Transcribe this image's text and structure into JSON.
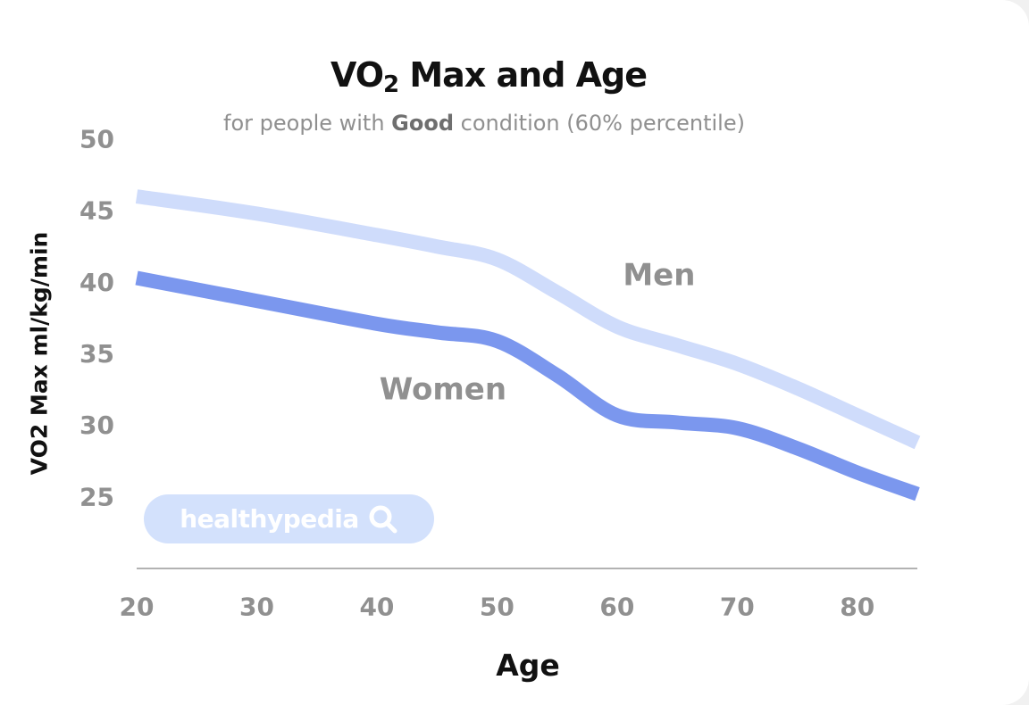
{
  "title": {
    "main": "VO",
    "subscript": "2",
    "rest": " Max and Age"
  },
  "subtitle": {
    "prefix": "for people with ",
    "bold": "Good",
    "suffix": " condition (60% percentile)"
  },
  "brand": {
    "text": "healthypedia",
    "icon": "search-icon"
  },
  "colors": {
    "men": "#cfdcfb",
    "women": "#7b97ee",
    "tick": "#909090",
    "axis": "#666666"
  },
  "chart_data": {
    "type": "line",
    "xlabel": "Age",
    "ylabel": "VO2 Max ml/kg/min",
    "xlim": [
      20,
      85
    ],
    "ylim": [
      20,
      50
    ],
    "xticks": [
      20,
      30,
      40,
      50,
      60,
      70,
      80
    ],
    "yticks": [
      25,
      30,
      35,
      40,
      45,
      50
    ],
    "grid": false,
    "series": [
      {
        "name": "Men",
        "color": "#cfdcfb",
        "x": [
          20,
          30,
          40,
          45,
          50,
          55,
          60,
          65,
          70,
          75,
          80,
          85
        ],
        "y": [
          46.0,
          44.8,
          43.3,
          42.5,
          41.6,
          39.3,
          36.9,
          35.6,
          34.3,
          32.6,
          30.7,
          28.8
        ]
      },
      {
        "name": "Women",
        "color": "#7b97ee",
        "x": [
          20,
          30,
          40,
          45,
          50,
          55,
          60,
          65,
          70,
          75,
          80,
          85
        ],
        "y": [
          40.3,
          38.7,
          37.1,
          36.5,
          35.9,
          33.5,
          30.7,
          30.2,
          29.8,
          28.4,
          26.7,
          25.2
        ]
      }
    ]
  }
}
